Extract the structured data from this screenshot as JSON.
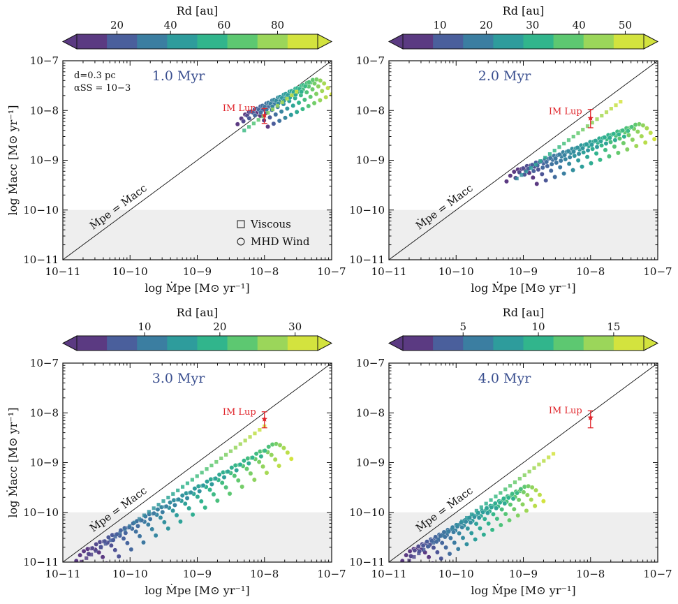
{
  "chart_data": [
    {
      "type": "scatter",
      "panel": "top-left",
      "time_label": "1.0 Myr",
      "xlabel": "log Ṁpe [M⊙ yr⁻¹]",
      "ylabel": "log Ṁacc [M⊙ yr⁻¹]",
      "xlim": [
        1e-11,
        1e-07
      ],
      "ylim": [
        1e-11,
        1e-07
      ],
      "x_ticks": [
        {
          "value": 1e-11,
          "label": "10−11"
        },
        {
          "value": 1e-10,
          "label": "10−10"
        },
        {
          "value": 1e-09,
          "label": "10−9"
        },
        {
          "value": 1e-08,
          "label": "10−8"
        },
        {
          "value": 1e-07,
          "label": "10−7"
        }
      ],
      "y_ticks": [
        {
          "value": 1e-11,
          "label": "10−11"
        },
        {
          "value": 1e-10,
          "label": "10−10"
        },
        {
          "value": 1e-09,
          "label": "10−9"
        },
        {
          "value": 1e-08,
          "label": "10−8"
        },
        {
          "value": 1e-07,
          "label": "10−7"
        }
      ],
      "shaded_below": 1e-10,
      "diagonal_label": "Ṁpe = Ṁacc",
      "annotation_lines": [
        "d=0.3 pc",
        "αSS = 10−3"
      ],
      "legend": [
        "Viscous",
        "MHD Wind"
      ],
      "colorbar": {
        "label": "Rd [au]",
        "range": [
          5,
          95
        ],
        "ticks": [
          20,
          40,
          60,
          80
        ],
        "extend": "both"
      },
      "observation": {
        "label": "IM Lup",
        "x": 1e-08,
        "y": 8e-09,
        "yerr_low": 5.5e-09,
        "yerr_high": 1.1e-08
      },
      "series": [
        {
          "name": "MHD Wind",
          "marker": "circle",
          "family": "wind_arc",
          "log_mass_range": [
            -8.45,
            -7.5
          ],
          "log_peak_range": [
            -8.0,
            -7.35
          ],
          "n_curves": 12,
          "rd_range": [
            5,
            95
          ]
        },
        {
          "name": "Viscous",
          "marker": "square",
          "family": "viscous_line",
          "x_range": [
            5e-09,
            3e-08
          ],
          "slope": 1.0,
          "offset": -0.1,
          "rd_range": [
            60,
            95
          ]
        }
      ]
    },
    {
      "type": "scatter",
      "panel": "top-right",
      "time_label": "2.0 Myr",
      "xlabel": "log Ṁpe [M⊙ yr⁻¹]",
      "ylabel": "",
      "xlim": [
        1e-11,
        1e-07
      ],
      "ylim": [
        1e-11,
        1e-07
      ],
      "x_ticks": [
        {
          "value": 1e-11,
          "label": "10−11"
        },
        {
          "value": 1e-10,
          "label": "10−10"
        },
        {
          "value": 1e-09,
          "label": "10−9"
        },
        {
          "value": 1e-08,
          "label": "10−8"
        },
        {
          "value": 1e-07,
          "label": "10−7"
        }
      ],
      "y_ticks": [
        {
          "value": 1e-11,
          "label": "10−11"
        },
        {
          "value": 1e-10,
          "label": "10−10"
        },
        {
          "value": 1e-09,
          "label": "10−9"
        },
        {
          "value": 1e-08,
          "label": "10−8"
        },
        {
          "value": 1e-07,
          "label": "10−7"
        }
      ],
      "shaded_below": 1e-10,
      "diagonal_label": "Ṁpe = Ṁacc",
      "colorbar": {
        "label": "Rd [au]",
        "range": [
          2,
          54
        ],
        "ticks": [
          10,
          20,
          30,
          40,
          50
        ],
        "extend": "both"
      },
      "observation": {
        "label": "IM Lup",
        "x": 1e-08,
        "y": 7e-09,
        "yerr_low": 4.5e-09,
        "yerr_high": 1.05e-08
      },
      "series": [
        {
          "name": "MHD Wind",
          "marker": "circle",
          "family": "wind_arc",
          "log_mass_range": [
            -9.3,
            -7.55
          ],
          "log_peak_range": [
            -9.15,
            -8.25
          ],
          "n_curves": 14,
          "rd_range": [
            2,
            54
          ]
        },
        {
          "name": "Viscous",
          "marker": "square",
          "family": "viscous_line",
          "x_range": [
            8e-10,
            2.8e-08
          ],
          "slope": 1.0,
          "offset": -0.27,
          "rd_range": [
            20,
            54
          ]
        }
      ]
    },
    {
      "type": "scatter",
      "panel": "bottom-left",
      "time_label": "3.0 Myr",
      "xlabel": "log Ṁpe [M⊙ yr⁻¹]",
      "ylabel": "log Ṁacc [M⊙ yr⁻¹]",
      "xlim": [
        1e-11,
        1e-07
      ],
      "ylim": [
        1e-11,
        1e-07
      ],
      "x_ticks": [
        {
          "value": 1e-11,
          "label": "10−11"
        },
        {
          "value": 1e-10,
          "label": "10−10"
        },
        {
          "value": 1e-09,
          "label": "10−9"
        },
        {
          "value": 1e-08,
          "label": "10−8"
        },
        {
          "value": 1e-07,
          "label": "10−7"
        }
      ],
      "y_ticks": [
        {
          "value": 1e-11,
          "label": "10−11"
        },
        {
          "value": 1e-10,
          "label": "10−10"
        },
        {
          "value": 1e-09,
          "label": "10−9"
        },
        {
          "value": 1e-08,
          "label": "10−8"
        },
        {
          "value": 1e-07,
          "label": "10−7"
        }
      ],
      "shaded_below": 1e-10,
      "diagonal_label": "Ṁpe = Ṁacc",
      "colorbar": {
        "label": "Rd [au]",
        "range": [
          1,
          33
        ],
        "ticks": [
          10,
          20,
          30
        ],
        "extend": "both"
      },
      "observation": {
        "label": "IM Lup",
        "x": 1e-08,
        "y": 7.5e-09,
        "yerr_low": 5e-09,
        "yerr_high": 1.05e-08
      },
      "series": [
        {
          "name": "MHD Wind",
          "marker": "circle",
          "family": "wind_arc",
          "log_mass_range": [
            -10.85,
            -8.1
          ],
          "log_peak_range": [
            -10.7,
            -8.6
          ],
          "n_curves": 16,
          "rd_range": [
            1,
            33
          ]
        },
        {
          "name": "Viscous",
          "marker": "square",
          "family": "viscous_line",
          "x_range": [
            1.9e-11,
            1e-08
          ],
          "slope": 1.0,
          "offset": -0.27,
          "rd_range": [
            1,
            33
          ]
        }
      ]
    },
    {
      "type": "scatter",
      "panel": "bottom-right",
      "time_label": "4.0 Myr",
      "xlabel": "log Ṁpe [M⊙ yr⁻¹]",
      "ylabel": "",
      "xlim": [
        1e-11,
        1e-07
      ],
      "ylim": [
        1e-11,
        1e-07
      ],
      "x_ticks": [
        {
          "value": 1e-11,
          "label": "10−11"
        },
        {
          "value": 1e-10,
          "label": "10−10"
        },
        {
          "value": 1e-09,
          "label": "10−9"
        },
        {
          "value": 1e-08,
          "label": "10−8"
        },
        {
          "value": 1e-07,
          "label": "10−7"
        }
      ],
      "y_ticks": [
        {
          "value": 1e-11,
          "label": "10−11"
        },
        {
          "value": 1e-10,
          "label": "10−10"
        },
        {
          "value": 1e-09,
          "label": "10−9"
        },
        {
          "value": 1e-08,
          "label": "10−8"
        },
        {
          "value": 1e-07,
          "label": "10−7"
        }
      ],
      "shaded_below": 1e-10,
      "diagonal_label": "Ṁpe = Ṁacc",
      "colorbar": {
        "label": "Rd [au]",
        "range": [
          1,
          17
        ],
        "ticks": [
          5,
          10,
          15
        ],
        "extend": "both"
      },
      "observation": {
        "label": "IM Lup",
        "x": 1e-08,
        "y": 8e-09,
        "yerr_low": 5e-09,
        "yerr_high": 1.1e-08
      },
      "series": [
        {
          "name": "MHD Wind",
          "marker": "circle",
          "family": "wind_arc",
          "log_mass_range": [
            -10.85,
            -9.2
          ],
          "log_peak_range": [
            -10.7,
            -9.45
          ],
          "n_curves": 14,
          "rd_range": [
            1,
            17
          ]
        },
        {
          "name": "Viscous",
          "marker": "square",
          "family": "viscous_line",
          "x_range": [
            1.7e-11,
            2.8e-09
          ],
          "slope": 1.0,
          "offset": -0.27,
          "rd_range": [
            1,
            17
          ]
        }
      ]
    }
  ],
  "colors": {
    "viridis": [
      "#5b3a82",
      "#4a5f9c",
      "#3b7ea1",
      "#2e9c9c",
      "#31b58c",
      "#5dc871",
      "#9bd65a",
      "#d3e33e"
    ],
    "shade": "#eeeeee",
    "imlup": "#e0252b",
    "axis": "#111111"
  }
}
